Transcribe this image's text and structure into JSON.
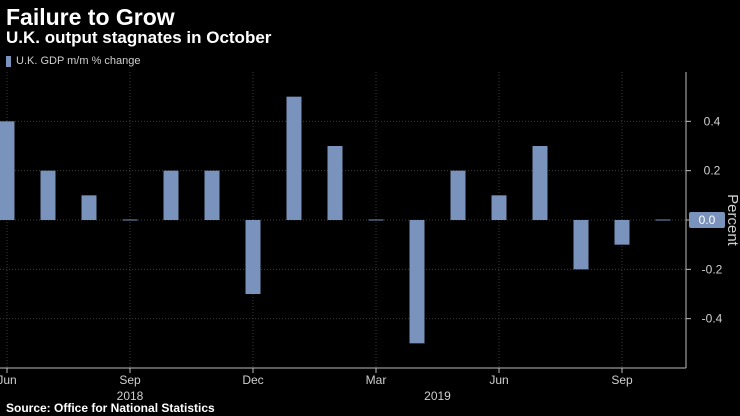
{
  "title": "Failure to Grow",
  "subtitle": "U.K. output stagnates in October",
  "source": "Source: Office for National Statistics",
  "colors": {
    "bar": "#7a93bc",
    "grid": "#3c3c3c",
    "background": "#000000",
    "badge": "#7a93bc"
  },
  "chart_data": {
    "type": "bar",
    "title": "Failure to Grow",
    "subtitle": "U.K. output stagnates in October",
    "xlabel": "",
    "ylabel": "Percent",
    "legend": [
      "U.K. GDP m/m % change"
    ],
    "categories": [
      "2018-06",
      "2018-07",
      "2018-08",
      "2018-09",
      "2018-10",
      "2018-11",
      "2018-12",
      "2019-01",
      "2019-02",
      "2019-03",
      "2019-04",
      "2019-05",
      "2019-06",
      "2019-07",
      "2019-08",
      "2019-09",
      "2019-10"
    ],
    "series": [
      {
        "name": "U.K. GDP m/m % change",
        "values": [
          0.4,
          0.2,
          0.1,
          0.0,
          0.2,
          0.2,
          -0.3,
          0.5,
          0.3,
          0.0,
          -0.5,
          0.2,
          0.1,
          0.3,
          -0.2,
          -0.1,
          0.0
        ]
      }
    ],
    "ylim": [
      -0.6,
      0.6
    ],
    "yticks": [
      0.4,
      0.2,
      0.0,
      -0.2,
      -0.4
    ],
    "ytick_labels": [
      "0.4",
      "0.2",
      "0.0",
      "-0.2",
      "-0.4"
    ],
    "last_value_label": "0.0",
    "xtick_labels": [
      {
        "index": 0,
        "label": "Jun"
      },
      {
        "index": 3,
        "label": "Sep"
      },
      {
        "index": 6,
        "label": "Dec"
      },
      {
        "index": 9,
        "label": "Mar"
      },
      {
        "index": 12,
        "label": "Jun"
      },
      {
        "index": 15,
        "label": "Sep"
      }
    ],
    "year_labels": [
      {
        "index": 3,
        "label": "2018"
      },
      {
        "index": 10.5,
        "label": "2019"
      }
    ],
    "grid": true,
    "legend_position": "top-left"
  }
}
